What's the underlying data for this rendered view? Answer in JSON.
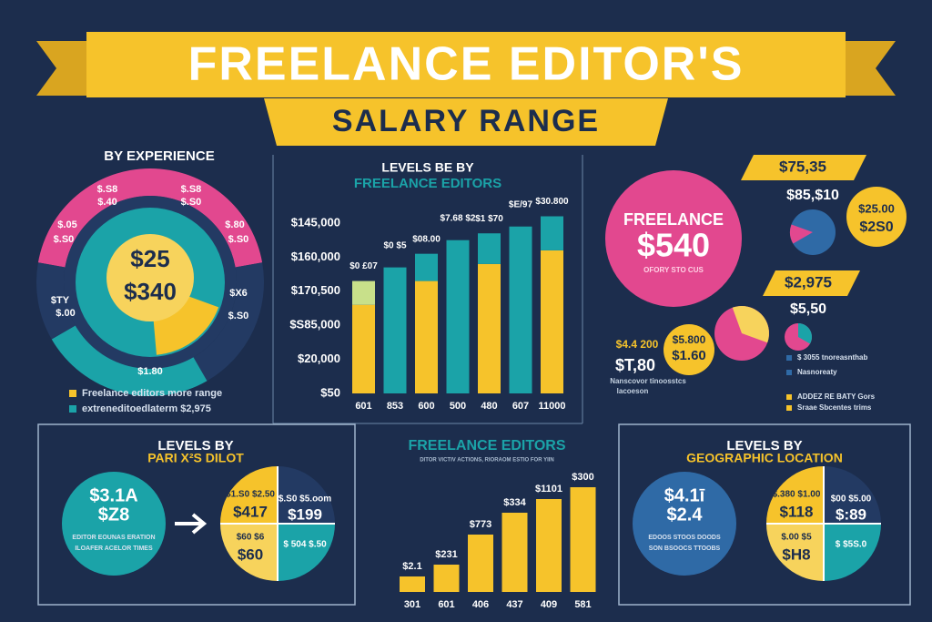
{
  "header": {
    "title": "FREELANCE EDITOR'S",
    "subtitle": "SALARY RANGE"
  },
  "experience": {
    "title": "BY EXPERIENCE",
    "center": [
      "$25",
      "$340"
    ],
    "ring_labels": [
      "$.S8",
      "$.40",
      "$.S8",
      "$.S0",
      "$.05",
      "$.S0",
      "$.80",
      "$.S0",
      "$TY",
      "$.00",
      "$X6",
      "$.S0",
      "$1.80"
    ],
    "legend": [
      "Freelance editors more range",
      "extreneditoedlaterm $2,975"
    ]
  },
  "chart_data": [
    {
      "type": "bar",
      "title": "LEVELS BE BY",
      "subtitle": "FREELANCE EDITORS",
      "categories": [
        "601",
        "853",
        "600",
        "500",
        "480",
        "607",
        "11000"
      ],
      "series": [
        {
          "color": "#f6c32b",
          "values": [
            2.6,
            0,
            3.3,
            0,
            3.8,
            0,
            4.2
          ]
        },
        {
          "color": "#1ba3a8",
          "values": [
            0,
            3.7,
            0.8,
            4.5,
            0.9,
            4.9,
            1.0
          ]
        },
        {
          "color": "#c8e08a",
          "values": [
            0.7,
            0,
            0,
            0,
            0,
            0,
            0
          ]
        }
      ],
      "ylim": [
        0,
        5.5
      ],
      "yticks": [
        {
          "value": 0,
          "label": "$50"
        },
        {
          "value": 1,
          "label": "$20,000"
        },
        {
          "value": 2,
          "label": "$S85,000"
        },
        {
          "value": 3,
          "label": "$170,500"
        },
        {
          "value": 4,
          "label": "$160,000"
        },
        {
          "value": 5,
          "label": "$145,000"
        }
      ],
      "bar_labels": [
        "$0 £07",
        "$0 $5",
        "$08.00",
        "$7.68 $2",
        "$1 $70",
        "$E/97",
        "$30.800"
      ]
    },
    {
      "type": "bar",
      "title": "FREELANCE EDITORS",
      "subtitle": "DITOR VICTIV ACTIONS, RIORAOM ESTIO FOR YIIN",
      "categories": [
        "301",
        "601",
        "406",
        "437",
        "409",
        "581"
      ],
      "values": [
        17,
        30,
        63,
        87,
        102,
        115
      ],
      "color": "#f6c32b",
      "ylim": [
        0,
        120
      ],
      "bar_labels": [
        "$2.1",
        "$231",
        "$773",
        "$334",
        "$1101",
        "$300"
      ]
    }
  ],
  "freelance": {
    "title": "FREELANCE",
    "amount": "$540",
    "note": "OFORY STO CUS"
  },
  "tags": [
    "$75,35",
    "$85,$10",
    "$25.00",
    "$2S0",
    "$2,975",
    "$5,50",
    "$5.800",
    "$1.60",
    "$4.4 200",
    "$T,80",
    "Nanscovor tinoosstcs",
    "lacoeson"
  ],
  "right_legend": [
    "$ 3055 tnoreasnthab",
    "Nasnoreaty",
    "ADDEZ RE BATY Gors",
    "Sraae Sbcentes trims"
  ],
  "pair_panel": {
    "title": "LEVELS BY",
    "subtitle": "PARI X²S DILOT",
    "circle": [
      "$3.1A",
      "$Z8",
      "EDITOR EOUNAS ERATION",
      "ILOAFER ACELOR TIMES"
    ],
    "quad": [
      "$1.S0 $2.50",
      "$417",
      "$.S0 $5.oom",
      "$199",
      "$60 $6",
      "$60",
      "$ 504 $.50"
    ]
  },
  "geo_panel": {
    "title": "LEVELS BY",
    "subtitle": "GEOGRAPHIC LOCATION",
    "circle": [
      "$4.1ī",
      "$2.4",
      "EDOOS STOOS DOODS",
      "SON BSOOCS TTOOBS"
    ],
    "quad": [
      "$.380 $1.00",
      "$118",
      "$00 $5.00",
      "$:89",
      "$.00 $5",
      "$H8",
      "$ $5S.0"
    ]
  }
}
